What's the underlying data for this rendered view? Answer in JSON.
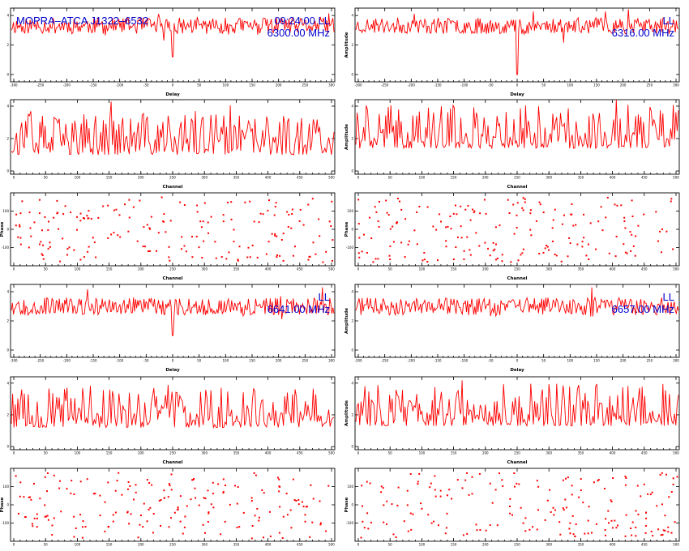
{
  "chart_data": [
    {
      "id": "r1l",
      "type": "line",
      "kind": "delay",
      "xlabel": "Delay",
      "ylabel": "",
      "ylim": [
        -0.5,
        4.5
      ],
      "xlim": [
        -310,
        310
      ],
      "xticks": [
        "-300",
        "-250",
        "-200",
        "-150",
        "-100",
        "-50",
        "0",
        "50",
        "100",
        "150",
        "200",
        "250",
        "300"
      ],
      "yticks": [
        "0",
        "2",
        "4"
      ],
      "annotations": {
        "left": "MOPRA–ATCA J1322–6532",
        "right1": "09:24:00   LL",
        "right2": "6300.00 MHz"
      },
      "series": {
        "base": 3.3,
        "amp": 0.55,
        "seed": 11,
        "n": 310,
        "spikes": [
          [
            0.5,
            4.4,
            1.2
          ]
        ]
      }
    },
    {
      "id": "r1r",
      "type": "line",
      "kind": "delay",
      "xlabel": "Delay",
      "ylabel": "Amplitude",
      "ylim": [
        -0.5,
        4.5
      ],
      "xlim": [
        -310,
        310
      ],
      "xticks": [
        "-300",
        "-250",
        "-200",
        "-150",
        "-100",
        "-50",
        "0",
        "50",
        "100",
        "150",
        "200",
        "250",
        "300"
      ],
      "yticks": [
        "0",
        "2",
        "4"
      ],
      "annotations": {
        "right1": "LL",
        "right2": "6316.00 MHz"
      },
      "series": {
        "base": 3.3,
        "amp": 0.55,
        "seed": 23,
        "n": 310,
        "spikes": [
          [
            0.5,
            4.5,
            0.0
          ]
        ]
      }
    },
    {
      "id": "r2l",
      "type": "line",
      "kind": "channel",
      "xlabel": "Channel",
      "ylabel": "",
      "ylim": [
        -0.2,
        4.4
      ],
      "xlim": [
        0,
        512
      ],
      "xticks": [
        "0",
        "50",
        "100",
        "150",
        "200",
        "250",
        "300",
        "350",
        "400",
        "450",
        "500"
      ],
      "yticks": [
        "0",
        "2",
        "4"
      ],
      "series": {
        "base": 1.0,
        "amp": 1.4,
        "seed": 37,
        "n": 250,
        "spikes": []
      }
    },
    {
      "id": "r2r",
      "type": "line",
      "kind": "channel",
      "xlabel": "Channel",
      "ylabel": "Amplitude",
      "ylim": [
        -0.2,
        4.4
      ],
      "xlim": [
        0,
        512
      ],
      "xticks": [
        "0",
        "50",
        "100",
        "150",
        "200",
        "250",
        "300",
        "350",
        "400",
        "450",
        "500"
      ],
      "yticks": [
        "0",
        "2",
        "4"
      ],
      "series": {
        "base": 1.4,
        "amp": 1.5,
        "seed": 41,
        "n": 250,
        "spikes": []
      }
    },
    {
      "id": "r3l",
      "type": "scatter",
      "kind": "phase",
      "xlabel": "Channel",
      "ylabel": "Phase",
      "ylim": [
        -200,
        200
      ],
      "xlim": [
        0,
        512
      ],
      "xticks": [
        "0",
        "50",
        "100",
        "150",
        "200",
        "250",
        "300",
        "350",
        "400",
        "450",
        "500"
      ],
      "yticks": [
        "-100",
        "0",
        "100"
      ],
      "series": {
        "seed": 53,
        "n": 190
      }
    },
    {
      "id": "r3r",
      "type": "scatter",
      "kind": "phase",
      "xlabel": "Channel",
      "ylabel": "Phase",
      "ylim": [
        -200,
        200
      ],
      "xlim": [
        0,
        512
      ],
      "xticks": [
        "0",
        "50",
        "100",
        "150",
        "200",
        "250",
        "300",
        "350",
        "400",
        "450",
        "500"
      ],
      "yticks": [
        "-100",
        "0",
        "100"
      ],
      "series": {
        "seed": 59,
        "n": 190
      }
    },
    {
      "id": "r4l",
      "type": "line",
      "kind": "delay",
      "xlabel": "Delay",
      "ylabel": "",
      "ylim": [
        -0.5,
        4.5
      ],
      "xlim": [
        -310,
        310
      ],
      "xticks": [
        "-300",
        "-250",
        "-200",
        "-150",
        "-100",
        "-50",
        "0",
        "50",
        "100",
        "150",
        "200",
        "250",
        "300"
      ],
      "yticks": [
        "0",
        "2",
        "4"
      ],
      "annotations": {
        "right1": "LL",
        "right2": "6641.00 MHz"
      },
      "series": {
        "base": 3.0,
        "amp": 0.6,
        "seed": 67,
        "n": 310,
        "spikes": [
          [
            0.5,
            3.0,
            1.0
          ]
        ]
      }
    },
    {
      "id": "r4r",
      "type": "line",
      "kind": "delay",
      "xlabel": "Delay",
      "ylabel": "Amplitude",
      "ylim": [
        -0.5,
        4.5
      ],
      "xlim": [
        -310,
        310
      ],
      "xticks": [
        "-300",
        "-250",
        "-200",
        "-150",
        "-100",
        "-50",
        "0",
        "50",
        "100",
        "150",
        "200",
        "250",
        "300"
      ],
      "yticks": [
        "0",
        "2",
        "4"
      ],
      "annotations": {
        "right1": "LL",
        "right2": "6657.00 MHz"
      },
      "series": {
        "base": 3.0,
        "amp": 0.6,
        "seed": 71,
        "n": 310,
        "spikes": [
          [
            0.73,
            4.3,
            2.3
          ]
        ]
      }
    },
    {
      "id": "r5l",
      "type": "line",
      "kind": "channel",
      "xlabel": "Channel",
      "ylabel": "",
      "ylim": [
        -0.2,
        4.4
      ],
      "xlim": [
        0,
        512
      ],
      "xticks": [
        "0",
        "50",
        "100",
        "150",
        "200",
        "250",
        "300",
        "350",
        "400",
        "450",
        "500"
      ],
      "yticks": [
        "0",
        "2",
        "4"
      ],
      "series": {
        "base": 1.2,
        "amp": 1.4,
        "seed": 79,
        "n": 250,
        "spikes": []
      }
    },
    {
      "id": "r5r",
      "type": "line",
      "kind": "channel",
      "xlabel": "Channel",
      "ylabel": "Amplitude",
      "ylim": [
        -0.2,
        4.4
      ],
      "xlim": [
        0,
        512
      ],
      "xticks": [
        "0",
        "50",
        "100",
        "150",
        "200",
        "250",
        "300",
        "350",
        "400",
        "450",
        "500"
      ],
      "yticks": [
        "0",
        "2",
        "4"
      ],
      "series": {
        "base": 1.3,
        "amp": 1.5,
        "seed": 83,
        "n": 250,
        "spikes": []
      }
    },
    {
      "id": "r6l",
      "type": "scatter",
      "kind": "phase",
      "xlabel": "Channel",
      "ylabel": "Phase",
      "ylim": [
        -200,
        200
      ],
      "xlim": [
        0,
        512
      ],
      "xticks": [
        "0",
        "50",
        "100",
        "150",
        "200",
        "250",
        "300",
        "350",
        "400",
        "450",
        "500"
      ],
      "yticks": [
        "-100",
        "0",
        "100"
      ],
      "series": {
        "seed": 89,
        "n": 190
      }
    },
    {
      "id": "r6r",
      "type": "scatter",
      "kind": "phase",
      "xlabel": "Channel",
      "ylabel": "Phase",
      "ylim": [
        -200,
        200
      ],
      "xlim": [
        0,
        512
      ],
      "xticks": [
        "0",
        "50",
        "100",
        "150",
        "200",
        "250",
        "300",
        "350",
        "400",
        "450",
        "500"
      ],
      "yticks": [
        "-100",
        "0",
        "100"
      ],
      "series": {
        "seed": 97,
        "n": 190
      }
    }
  ],
  "colors": {
    "trace": "#ff0000",
    "annotation": "#0000cc",
    "axis": "#000000",
    "background": "#ffffff"
  }
}
